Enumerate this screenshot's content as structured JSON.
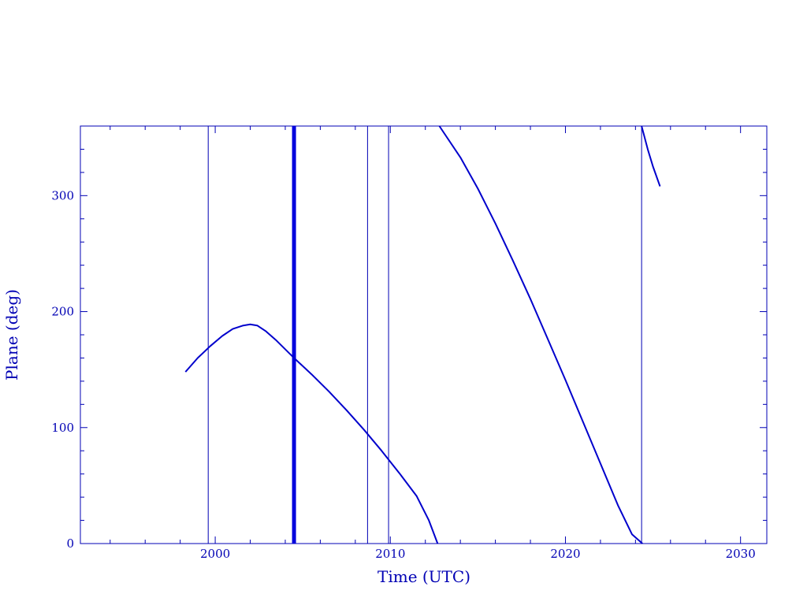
{
  "chart_data": {
    "type": "line",
    "title": "",
    "xlabel": "Time (UTC)",
    "ylabel": "Plane (deg)",
    "xlim": [
      1992.3,
      2031.5
    ],
    "ylim": [
      0,
      360
    ],
    "x_ticks": [
      2000,
      2010,
      2020,
      2030
    ],
    "x_tick_labels": [
      "2000",
      "2010",
      "2020",
      "2030"
    ],
    "y_ticks": [
      0,
      100,
      200,
      300
    ],
    "y_tick_labels": [
      "0",
      "100",
      "200",
      "300"
    ],
    "x_minor_step": 2,
    "y_minor_step": 20,
    "grid": false,
    "legend": "none",
    "line_color": "#0000cc",
    "axis_color": "#0000b4",
    "series": [
      {
        "x": [
          1998.3,
          1999.0,
          1999.7,
          2000.4,
          2001.0,
          2001.6,
          2002.0,
          2002.4,
          2002.9,
          2003.5,
          2004.5,
          2005.5,
          2006.5,
          2007.5,
          2008.5,
          2009.5,
          2010.5,
          2011.5,
          2012.2,
          2012.7
        ],
        "y": [
          148,
          160,
          170,
          179,
          185,
          188,
          189,
          188,
          183,
          175,
          160,
          146,
          131,
          115,
          98,
          80,
          61,
          41,
          20,
          0
        ]
      },
      {
        "x": [
          2012.8,
          2014.0,
          2015.0,
          2016.0,
          2017.0,
          2018.0,
          2019.0,
          2020.0,
          2021.0,
          2022.0,
          2023.0,
          2023.8,
          2024.4
        ],
        "y": [
          360,
          333,
          306,
          276,
          244,
          211,
          176,
          141,
          105,
          69,
          33,
          8,
          0
        ]
      },
      {
        "x": [
          2024.35,
          2024.7,
          2025.0,
          2025.4
        ],
        "y": [
          360,
          340,
          325,
          308
        ]
      }
    ],
    "vertical_lines": [
      {
        "x": 1999.6,
        "weight": "thin"
      },
      {
        "x": 2004.5,
        "weight": "thick"
      },
      {
        "x": 2008.7,
        "weight": "thin"
      },
      {
        "x": 2009.9,
        "weight": "thin"
      },
      {
        "x": 2024.35,
        "weight": "thin"
      }
    ]
  }
}
